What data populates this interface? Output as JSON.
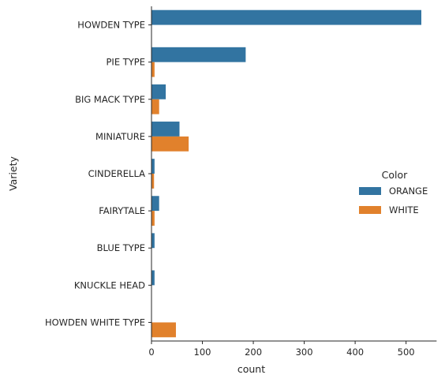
{
  "chart_data": {
    "type": "bar",
    "orientation": "horizontal",
    "categories": [
      "HOWDEN TYPE",
      "PIE TYPE",
      "BIG MACK TYPE",
      "MINIATURE",
      "CINDERELLA",
      "FAIRYTALE",
      "BLUE TYPE",
      "KNUCKLE HEAD",
      "HOWDEN WHITE TYPE"
    ],
    "series": [
      {
        "name": "ORANGE",
        "color": "#3274a1",
        "values": [
          530,
          185,
          28,
          55,
          6,
          15,
          6,
          6,
          0
        ]
      },
      {
        "name": "WHITE",
        "color": "#e1812c",
        "values": [
          0,
          6,
          15,
          73,
          5,
          6,
          0,
          0,
          48
        ]
      }
    ],
    "xlabel": "count",
    "ylabel": "Variety",
    "xlim": [
      0,
      560
    ],
    "xticks": [
      "0",
      "100",
      "200",
      "300",
      "400",
      "500"
    ],
    "legend": {
      "title": "Color",
      "placement": "right"
    },
    "grid": false
  }
}
